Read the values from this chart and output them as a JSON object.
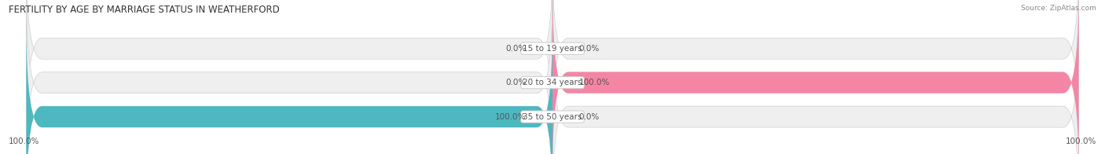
{
  "title": "FERTILITY BY AGE BY MARRIAGE STATUS IN WEATHERFORD",
  "source": "Source: ZipAtlas.com",
  "categories": [
    "15 to 19 years",
    "20 to 34 years",
    "35 to 50 years"
  ],
  "married_values": [
    0.0,
    0.0,
    100.0
  ],
  "unmarried_values": [
    0.0,
    100.0,
    0.0
  ],
  "married_color": "#4db8c0",
  "unmarried_color": "#f585a5",
  "bar_bg_color": "#efefef",
  "bar_height": 0.62,
  "figsize": [
    14.06,
    1.96
  ],
  "dpi": 100,
  "title_fontsize": 8.5,
  "label_fontsize": 7.5,
  "axis_label_fontsize": 7.5,
  "legend_fontsize": 8,
  "bg_color": "#ffffff",
  "bar_edge_color": "#d0d0d0",
  "center_label_color": "#555555",
  "value_text_color": "#555555"
}
